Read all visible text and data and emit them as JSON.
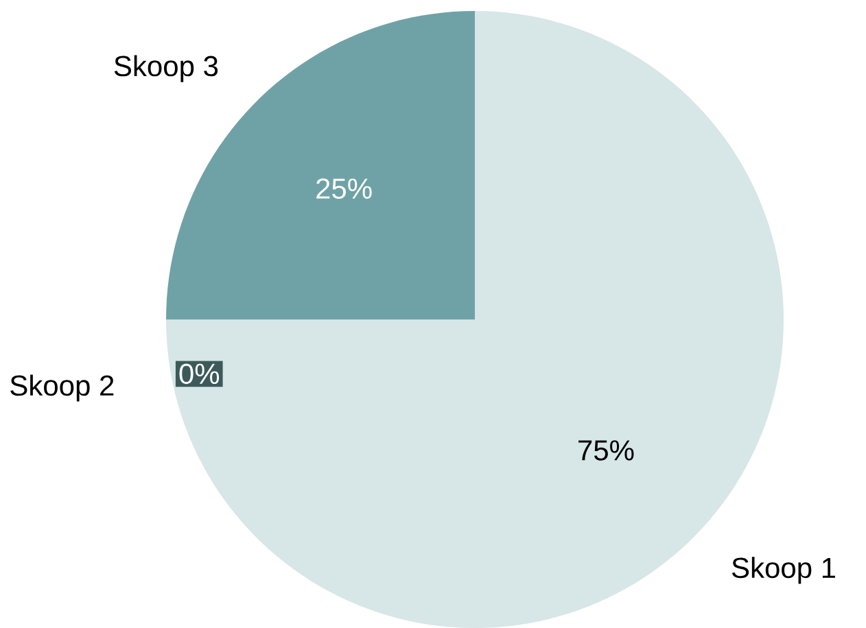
{
  "chart_data": {
    "type": "pie",
    "categories": [
      "Skoop 1",
      "Skoop 2",
      "Skoop 3"
    ],
    "values": [
      75,
      0,
      25
    ],
    "value_labels": [
      "75%",
      "0%",
      "25%"
    ],
    "colors": [
      "#d7e6e7",
      "#3d5a5a",
      "#6fa2a6"
    ]
  }
}
